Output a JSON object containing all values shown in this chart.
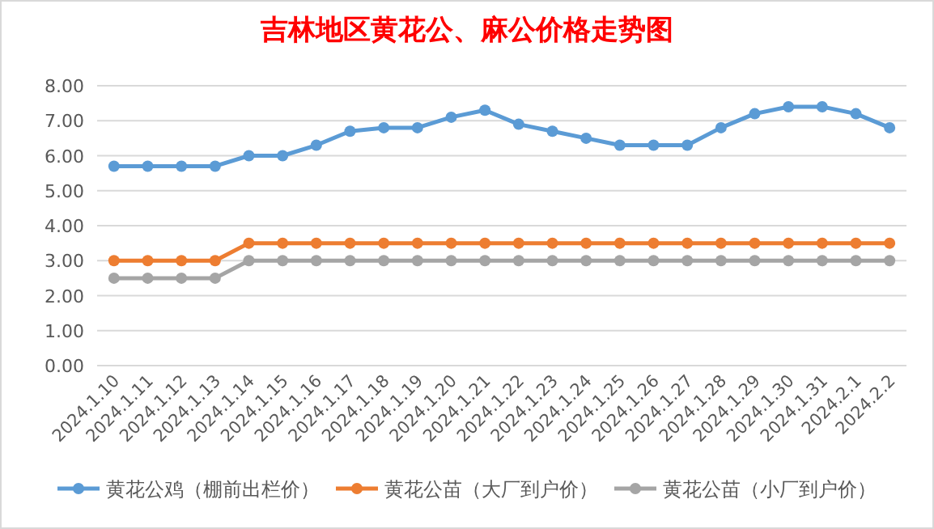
{
  "chart_data": {
    "type": "line",
    "title": "吉林地区黄花公、麻公价格走势图",
    "categories": [
      "2024.1.10",
      "2024.1.11",
      "2024.1.12",
      "2024.1.13",
      "2024.1.14",
      "2024.1.15",
      "2024.1.16",
      "2024.1.17",
      "2024.1.18",
      "2024.1.19",
      "2024.1.20",
      "2024.1.21",
      "2024.1.22",
      "2024.1.23",
      "2024.1.24",
      "2024.1.25",
      "2024.1.26",
      "2024.1.27",
      "2024.1.28",
      "2024.1.29",
      "2024.1.30",
      "2024.1.31",
      "2024.2.1",
      "2024.2.2"
    ],
    "series": [
      {
        "name": "黄花公鸡（棚前出栏价）",
        "color": "#5b9bd5",
        "values": [
          5.7,
          5.7,
          5.7,
          5.7,
          6.0,
          6.0,
          6.3,
          6.7,
          6.8,
          6.8,
          7.1,
          7.3,
          6.9,
          6.7,
          6.5,
          6.3,
          6.3,
          6.3,
          6.8,
          7.2,
          7.4,
          7.4,
          7.2,
          6.8
        ]
      },
      {
        "name": "黄花公苗（大厂到户价）",
        "color": "#ed7d31",
        "values": [
          3,
          3,
          3,
          3,
          3.5,
          3.5,
          3.5,
          3.5,
          3.5,
          3.5,
          3.5,
          3.5,
          3.5,
          3.5,
          3.5,
          3.5,
          3.5,
          3.5,
          3.5,
          3.5,
          3.5,
          3.5,
          3.5,
          3.5
        ]
      },
      {
        "name": "黄花公苗（小厂到户价）",
        "color": "#a5a5a5",
        "values": [
          2.5,
          2.5,
          2.5,
          2.5,
          3,
          3,
          3,
          3,
          3,
          3,
          3,
          3,
          3,
          3,
          3,
          3,
          3,
          3,
          3,
          3,
          3,
          3,
          3,
          3
        ]
      }
    ],
    "ylim": [
      0,
      8
    ],
    "yticks": [
      {
        "value": 0,
        "label": "0.00"
      },
      {
        "value": 1,
        "label": "1.00"
      },
      {
        "value": 2,
        "label": "2.00"
      },
      {
        "value": 3,
        "label": "3.00"
      },
      {
        "value": 4,
        "label": "4.00"
      },
      {
        "value": 5,
        "label": "5.00"
      },
      {
        "value": 6,
        "label": "6.00"
      },
      {
        "value": 7,
        "label": "7.00"
      },
      {
        "value": 8,
        "label": "8.00"
      }
    ],
    "grid": "y",
    "legend": "bottom",
    "marker": "circle",
    "line_style": "solid"
  }
}
